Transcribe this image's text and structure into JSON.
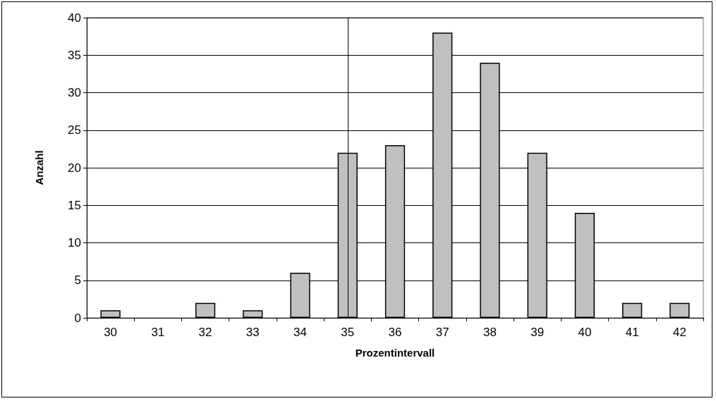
{
  "chart_data": {
    "type": "bar",
    "xlabel": "Prozentintervall",
    "ylabel": "Anzahl",
    "categories": [
      "30",
      "31",
      "32",
      "33",
      "34",
      "35",
      "36",
      "37",
      "38",
      "39",
      "40",
      "41",
      "42"
    ],
    "values": [
      1,
      0,
      2,
      1,
      6,
      22,
      23,
      38,
      34,
      22,
      14,
      2,
      2
    ],
    "color": "#c0c0c0",
    "ylim": [
      0,
      40
    ],
    "yticks": [
      0,
      5,
      10,
      15,
      20,
      25,
      30,
      35,
      40
    ],
    "grid": "y",
    "ref_lines": [
      {
        "axis": "x",
        "value": "35",
        "label": null,
        "color": "#000000"
      }
    ]
  }
}
